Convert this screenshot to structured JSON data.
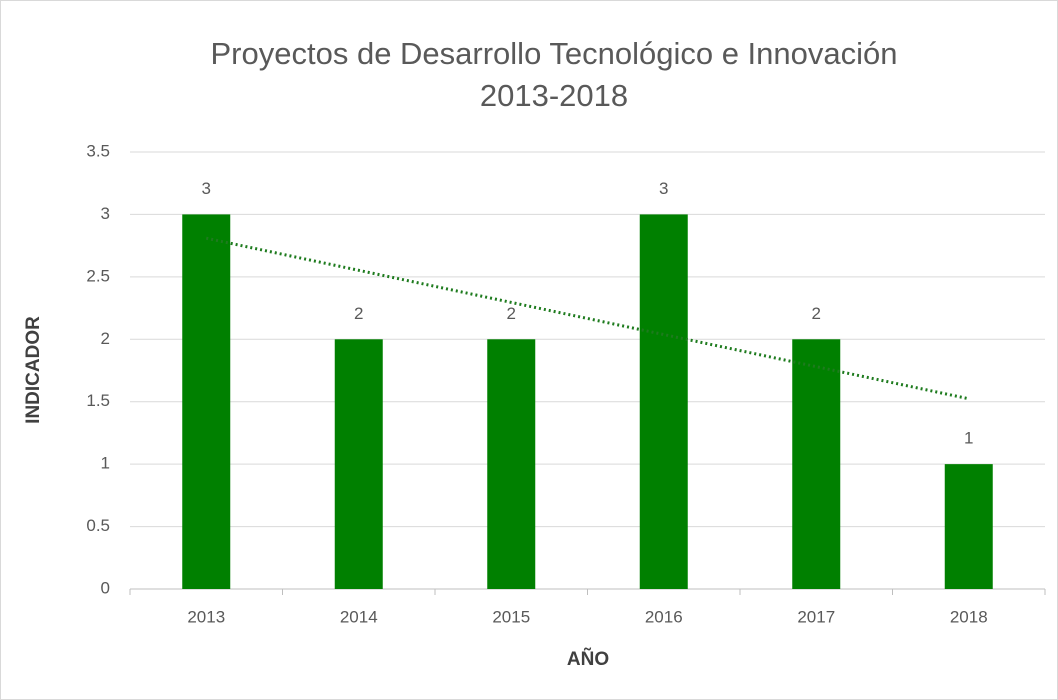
{
  "chart_data": {
    "type": "bar",
    "title": "Proyectos de Desarrollo Tecnológico e Innovación",
    "subtitle": "2013-2018",
    "x_label": "AÑO",
    "y_label": "INDICADOR",
    "categories": [
      "2013",
      "2014",
      "2015",
      "2016",
      "2017",
      "2018"
    ],
    "values": [
      3,
      2,
      2,
      3,
      2,
      1
    ],
    "color": "#008000",
    "ylim": [
      0,
      3.5
    ],
    "yticks": [
      0,
      0.5,
      1,
      1.5,
      2,
      2.5,
      3,
      3.5
    ],
    "grid": true,
    "trendline": "linear",
    "trendline_color": "#1e7b1e"
  }
}
